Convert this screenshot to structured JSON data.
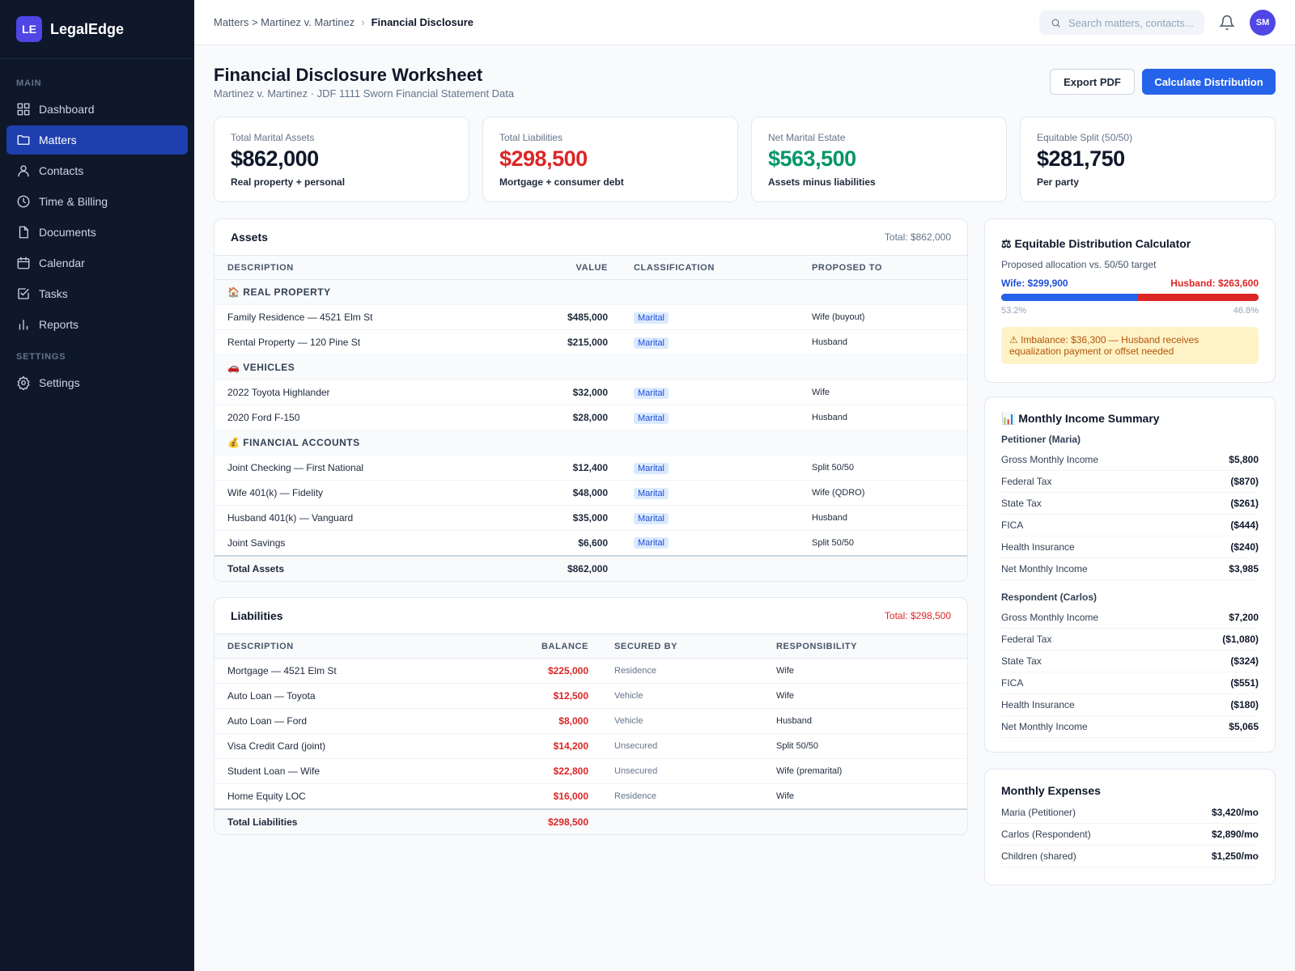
{
  "brand": {
    "initials": "LE",
    "name": "LegalEdge"
  },
  "sidebar": {
    "main_label": "MAIN",
    "settings_label": "SETTINGS",
    "items": [
      {
        "label": "Dashboard",
        "icon": "grid-icon"
      },
      {
        "label": "Matters",
        "icon": "folder-icon",
        "active": true
      },
      {
        "label": "Contacts",
        "icon": "user-icon"
      },
      {
        "label": "Time & Billing",
        "icon": "clock-icon"
      },
      {
        "label": "Documents",
        "icon": "document-icon"
      },
      {
        "label": "Calendar",
        "icon": "calendar-icon"
      },
      {
        "label": "Tasks",
        "icon": "checkbox-icon"
      },
      {
        "label": "Reports",
        "icon": "bar-chart-icon"
      }
    ],
    "settings_item": {
      "label": "Settings",
      "icon": "gear-icon"
    }
  },
  "topbar": {
    "breadcrumb_parent": "Matters > Martinez v. Martinez",
    "breadcrumb_sep": "›",
    "breadcrumb_current": "Financial Disclosure",
    "search_placeholder": "Search matters, contacts...",
    "avatar_initials": "SM"
  },
  "page": {
    "title": "Financial Disclosure Worksheet",
    "subtitle": "Martinez v. Martinez · JDF 1111 Sworn Financial Statement Data",
    "export_label": "Export PDF",
    "calc_label": "Calculate Distribution"
  },
  "stats": [
    {
      "label": "Total Marital Assets",
      "value": "$862,000",
      "note": "Real property + personal",
      "color": "#0f172a"
    },
    {
      "label": "Total Liabilities",
      "value": "$298,500",
      "note": "Mortgage + consumer debt",
      "color": "#dc2626"
    },
    {
      "label": "Net Marital Estate",
      "value": "$563,500",
      "note": "Assets minus liabilities",
      "color": "#059669"
    },
    {
      "label": "Equitable Split (50/50)",
      "value": "$281,750",
      "note": "Per party",
      "color": "#0f172a"
    }
  ],
  "assets": {
    "title": "Assets",
    "total": "Total: $862,000",
    "columns": [
      "DESCRIPTION",
      "VALUE",
      "CLASSIFICATION",
      "PROPOSED TO"
    ],
    "groups": [
      {
        "label": "🏠 REAL PROPERTY",
        "rows": [
          {
            "desc": "Family Residence — 4521 Elm St",
            "value": "$485,000",
            "class": "Marital",
            "to": "Wife (buyout)"
          },
          {
            "desc": "Rental Property — 120 Pine St",
            "value": "$215,000",
            "class": "Marital",
            "to": "Husband"
          }
        ]
      },
      {
        "label": "🚗 VEHICLES",
        "rows": [
          {
            "desc": "2022 Toyota Highlander",
            "value": "$32,000",
            "class": "Marital",
            "to": "Wife"
          },
          {
            "desc": "2020 Ford F-150",
            "value": "$28,000",
            "class": "Marital",
            "to": "Husband"
          }
        ]
      },
      {
        "label": "💰 FINANCIAL ACCOUNTS",
        "rows": [
          {
            "desc": "Joint Checking — First National",
            "value": "$12,400",
            "class": "Marital",
            "to": "Split 50/50"
          },
          {
            "desc": "Wife 401(k) — Fidelity",
            "value": "$48,000",
            "class": "Marital",
            "to": "Wife (QDRO)"
          },
          {
            "desc": "Husband 401(k) — Vanguard",
            "value": "$35,000",
            "class": "Marital",
            "to": "Husband"
          },
          {
            "desc": "Joint Savings",
            "value": "$6,600",
            "class": "Marital",
            "to": "Split 50/50"
          }
        ]
      }
    ],
    "total_label": "Total Assets",
    "total_value": "$862,000"
  },
  "liabilities": {
    "title": "Liabilities",
    "total": "Total: $298,500",
    "columns": [
      "DESCRIPTION",
      "BALANCE",
      "SECURED BY",
      "RESPONSIBILITY"
    ],
    "rows": [
      {
        "desc": "Mortgage — 4521 Elm St",
        "balance": "$225,000",
        "secured": "Residence",
        "resp": "Wife"
      },
      {
        "desc": "Auto Loan — Toyota",
        "balance": "$12,500",
        "secured": "Vehicle",
        "resp": "Wife"
      },
      {
        "desc": "Auto Loan — Ford",
        "balance": "$8,000",
        "secured": "Vehicle",
        "resp": "Husband"
      },
      {
        "desc": "Visa Credit Card (joint)",
        "balance": "$14,200",
        "secured": "Unsecured",
        "resp": "Split 50/50"
      },
      {
        "desc": "Student Loan — Wife",
        "balance": "$22,800",
        "secured": "Unsecured",
        "resp": "Wife (premarital)"
      },
      {
        "desc": "Home Equity LOC",
        "balance": "$16,000",
        "secured": "Residence",
        "resp": "Wife"
      }
    ],
    "total_label": "Total Liabilities",
    "total_value": "$298,500"
  },
  "calculator": {
    "title": "⚖ Equitable Distribution Calculator",
    "subtitle": "Proposed allocation vs. 50/50 target",
    "wife_label": "Wife: $299,900",
    "husband_label": "Husband: $263,600",
    "wife_pct_label": "53.2%",
    "husband_pct_label": "46.8%",
    "wife_share": 53.2,
    "warning": "⚠ Imbalance: $36,300 — Husband receives equalization payment or offset needed"
  },
  "income": {
    "title": "📊 Monthly Income Summary",
    "parties": [
      {
        "name": "Petitioner (Maria)",
        "rows": [
          {
            "k": "Gross Monthly Income",
            "v": "$5,800"
          },
          {
            "k": "Federal Tax",
            "v": "($870)"
          },
          {
            "k": "State Tax",
            "v": "($261)"
          },
          {
            "k": "FICA",
            "v": "($444)"
          },
          {
            "k": "Health Insurance",
            "v": "($240)"
          },
          {
            "k": "Net Monthly Income",
            "v": "$3,985"
          }
        ]
      },
      {
        "name": "Respondent (Carlos)",
        "rows": [
          {
            "k": "Gross Monthly Income",
            "v": "$7,200"
          },
          {
            "k": "Federal Tax",
            "v": "($1,080)"
          },
          {
            "k": "State Tax",
            "v": "($324)"
          },
          {
            "k": "FICA",
            "v": "($551)"
          },
          {
            "k": "Health Insurance",
            "v": "($180)"
          },
          {
            "k": "Net Monthly Income",
            "v": "$5,065"
          }
        ]
      }
    ]
  },
  "expenses": {
    "title": "Monthly Expenses",
    "rows": [
      {
        "k": "Maria (Petitioner)",
        "v": "$3,420/mo"
      },
      {
        "k": "Carlos (Respondent)",
        "v": "$2,890/mo"
      },
      {
        "k": "Children (shared)",
        "v": "$1,250/mo"
      }
    ]
  }
}
